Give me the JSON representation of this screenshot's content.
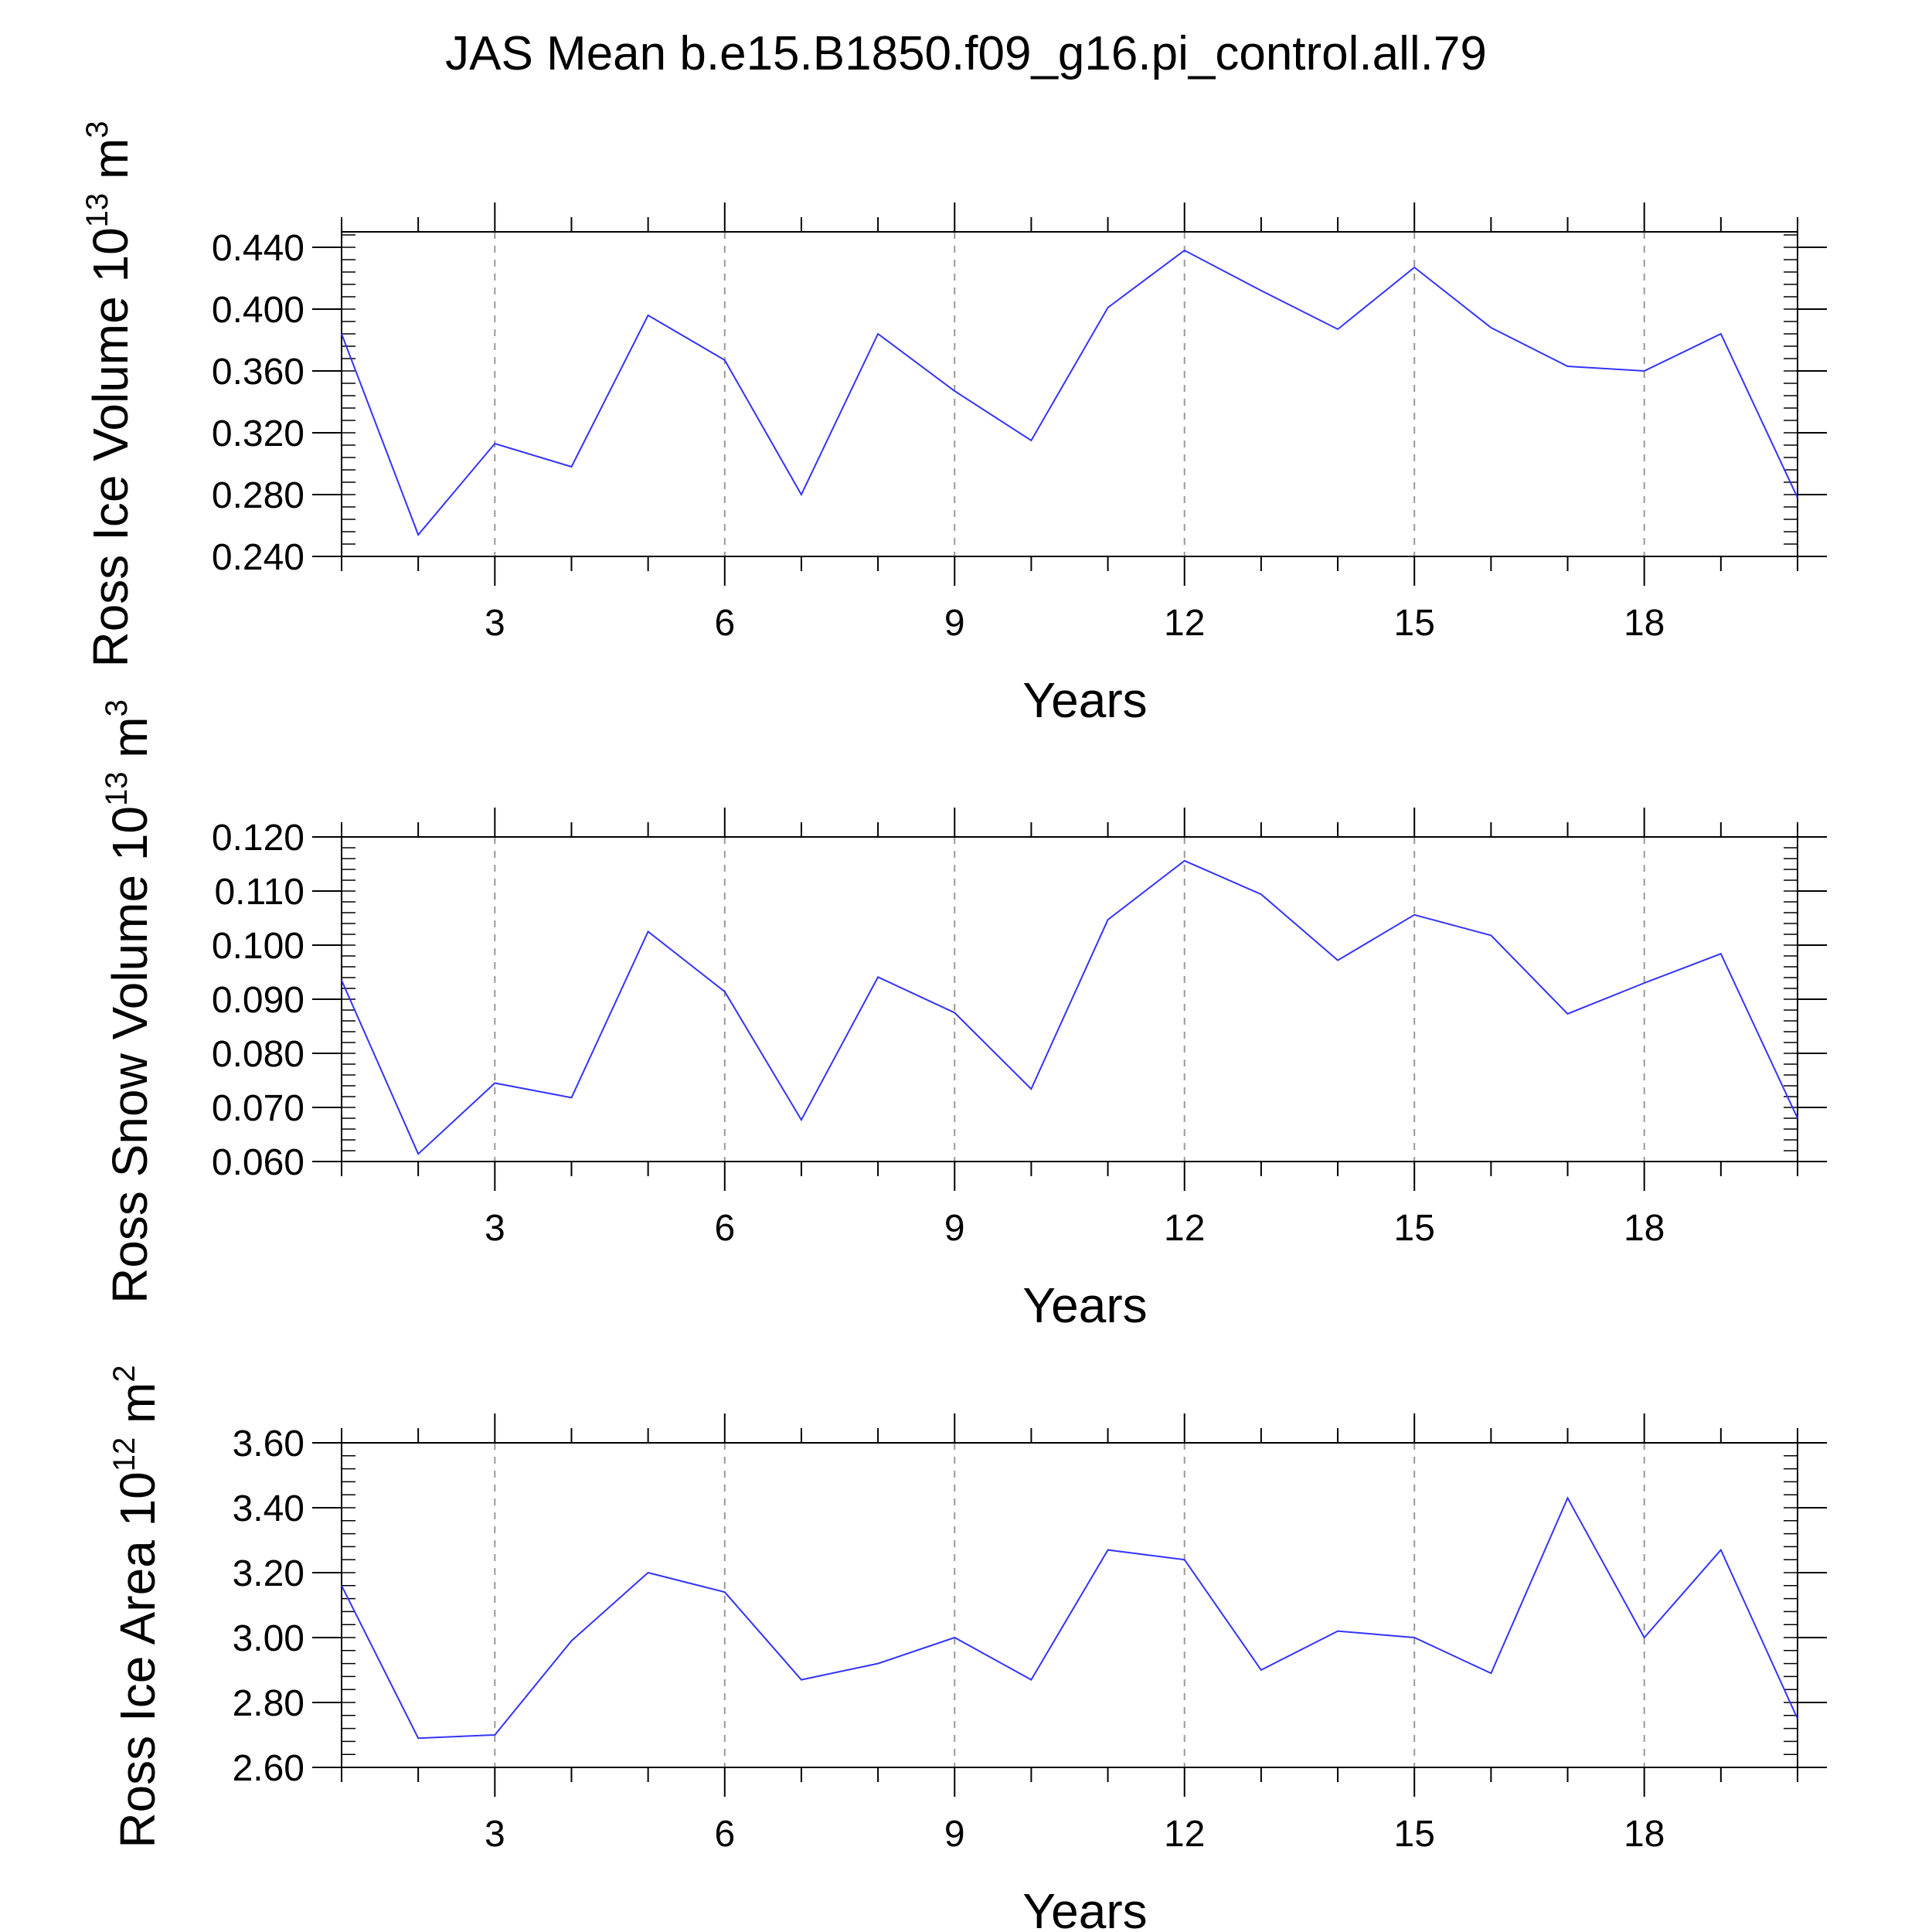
{
  "chart_data": [
    {
      "type": "line",
      "title": "JAS Mean b.e15.B1850.f09_g16.pi_control.all.79",
      "xlabel": "Years",
      "ylabel": "Ross Ice Volume 10",
      "ylabel_exp": "13",
      "ylabel_unit": " m",
      "ylabel_unit_exp": "3",
      "xlim": [
        1,
        20
      ],
      "ylim": [
        0.24,
        0.45
      ],
      "xticks": [
        3,
        6,
        9,
        12,
        15,
        18
      ],
      "yticks": [
        0.24,
        0.28,
        0.32,
        0.36,
        0.4,
        0.44
      ],
      "ytick_labels": [
        "0.240",
        "0.280",
        "0.320",
        "0.360",
        "0.400",
        "0.440"
      ],
      "grid": "x-dashed",
      "line_color": "#3333ff",
      "x": [
        1,
        2,
        3,
        4,
        5,
        6,
        7,
        8,
        9,
        10,
        11,
        12,
        13,
        14,
        15,
        16,
        17,
        18,
        19,
        20
      ],
      "values": [
        0.384,
        0.254,
        0.313,
        0.298,
        0.396,
        0.367,
        0.28,
        0.384,
        0.347,
        0.315,
        0.401,
        0.438,
        0.412,
        0.387,
        0.427,
        0.388,
        0.363,
        0.36,
        0.384,
        0.278
      ]
    },
    {
      "type": "line",
      "xlabel": "Years",
      "ylabel": "Ross Snow Volume 10",
      "ylabel_exp": "13",
      "ylabel_unit": " m",
      "ylabel_unit_exp": "3",
      "xlim": [
        1,
        20
      ],
      "ylim": [
        0.06,
        0.12
      ],
      "xticks": [
        3,
        6,
        9,
        12,
        15,
        18
      ],
      "yticks": [
        0.06,
        0.07,
        0.08,
        0.09,
        0.1,
        0.11,
        0.12
      ],
      "ytick_labels": [
        "0.060",
        "0.070",
        "0.080",
        "0.090",
        "0.100",
        "0.110",
        "0.120"
      ],
      "grid": "x-dashed",
      "line_color": "#3333ff",
      "x": [
        1,
        2,
        3,
        4,
        5,
        6,
        7,
        8,
        9,
        10,
        11,
        12,
        13,
        14,
        15,
        16,
        17,
        18,
        19,
        20
      ],
      "values": [
        0.0935,
        0.0614,
        0.0745,
        0.0718,
        0.1025,
        0.0914,
        0.0677,
        0.0941,
        0.0875,
        0.0734,
        0.1047,
        0.1156,
        0.1094,
        0.0972,
        0.1056,
        0.1018,
        0.0873,
        0.093,
        0.0984,
        0.068
      ]
    },
    {
      "type": "line",
      "xlabel": "Years",
      "ylabel": "Ross Ice Area 10",
      "ylabel_exp": "12",
      "ylabel_unit": " m",
      "ylabel_unit_exp": "2",
      "xlim": [
        1,
        20
      ],
      "ylim": [
        2.6,
        3.6
      ],
      "xticks": [
        3,
        6,
        9,
        12,
        15,
        18
      ],
      "yticks": [
        2.6,
        2.8,
        3.0,
        3.2,
        3.4,
        3.6
      ],
      "ytick_labels": [
        "2.60",
        "2.80",
        "3.00",
        "3.20",
        "3.40",
        "3.60"
      ],
      "grid": "x-dashed",
      "line_color": "#3333ff",
      "x": [
        1,
        2,
        3,
        4,
        5,
        6,
        7,
        8,
        9,
        10,
        11,
        12,
        13,
        14,
        15,
        16,
        17,
        18,
        19,
        20
      ],
      "values": [
        3.16,
        2.69,
        2.7,
        2.99,
        3.2,
        3.14,
        2.87,
        2.92,
        3.0,
        2.87,
        3.27,
        3.24,
        2.9,
        3.02,
        3.0,
        2.89,
        3.43,
        3.0,
        3.27,
        2.75
      ]
    }
  ]
}
